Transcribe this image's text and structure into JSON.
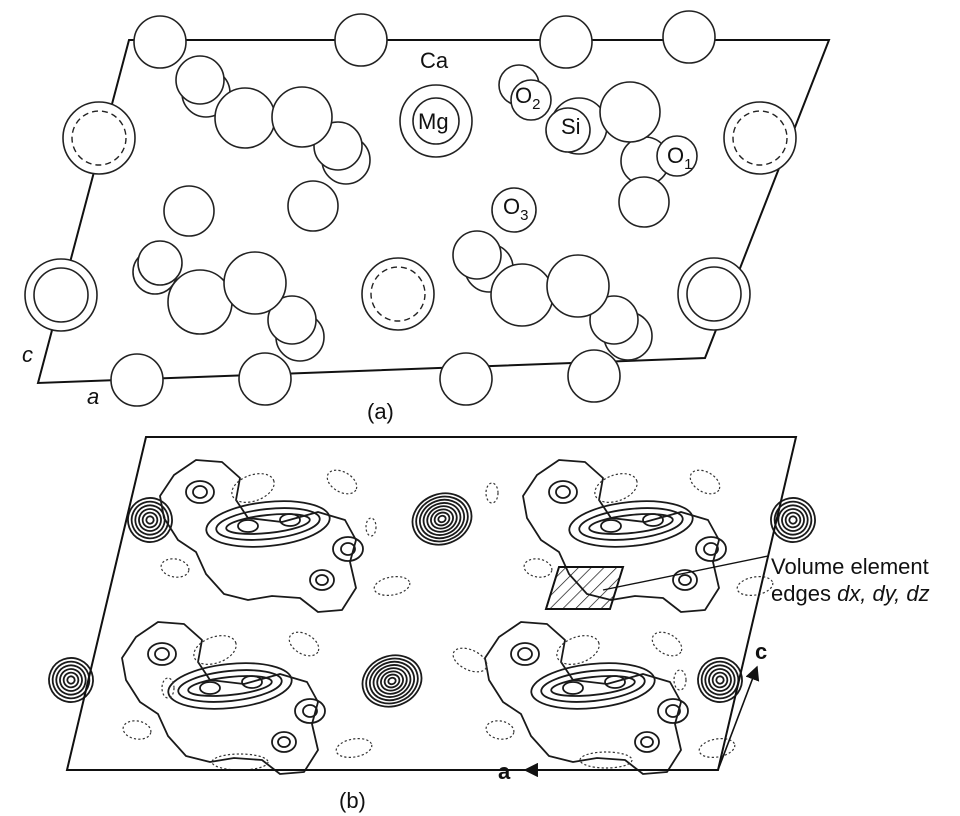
{
  "panel_a": {
    "caption": "(a)",
    "axis_c": "c",
    "axis_a": "a",
    "atoms": {
      "ca": "Ca",
      "mg": "Mg",
      "si": "Si",
      "o1_base": "O",
      "o1_sub": "1",
      "o2_base": "O",
      "o2_sub": "2",
      "o3_base": "O",
      "o3_sub": "3"
    }
  },
  "panel_b": {
    "caption": "(b)",
    "annotation_line1": "Volume element",
    "annotation_line2_prefix": "edges ",
    "annotation_line2_vars": "dx, dy, dz",
    "axis_c": "c",
    "axis_a": "a"
  }
}
